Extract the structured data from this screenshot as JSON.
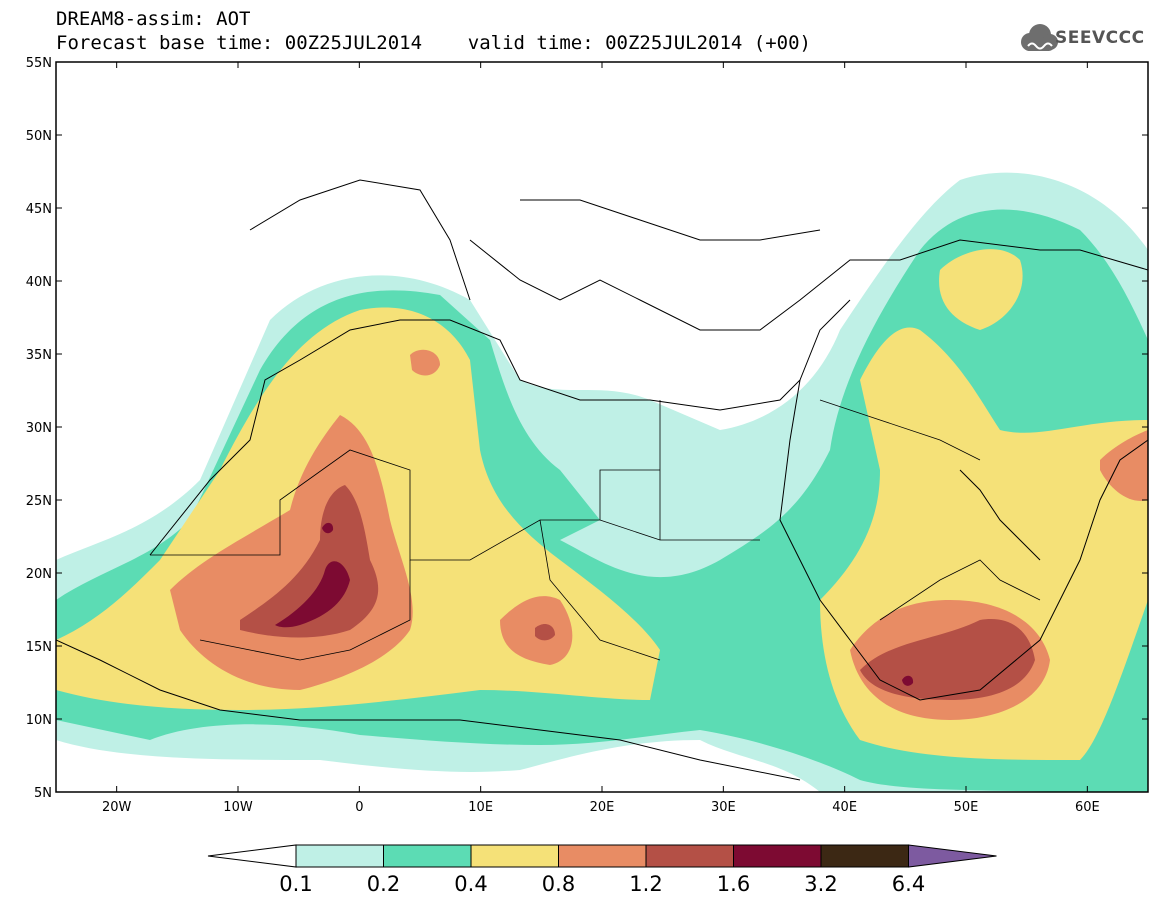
{
  "header": {
    "line1": "DREAM8-assim: AOT",
    "line2": "Forecast base time: 00Z25JUL2014    valid time: 00Z25JUL2014 (+00)",
    "logo_text": "SEEVCCC"
  },
  "map": {
    "lon_range": [
      -25,
      65
    ],
    "lat_range": [
      5,
      55
    ],
    "lat_ticks": [
      "5N",
      "10N",
      "15N",
      "20N",
      "25N",
      "30N",
      "35N",
      "40N",
      "45N",
      "50N",
      "55N"
    ],
    "lon_ticks": [
      "20W",
      "10W",
      "0",
      "10E",
      "20E",
      "30E",
      "40E",
      "50E",
      "60E"
    ]
  },
  "colorbar": {
    "labels": [
      "0.1",
      "0.2",
      "0.4",
      "0.8",
      "1.2",
      "1.6",
      "3.2",
      "6.4"
    ],
    "colors": [
      "#bff0e6",
      "#5cdcb4",
      "#f5e178",
      "#e88c64",
      "#b45046",
      "#7d0a32",
      "#3c2814",
      "#7d5aa0"
    ]
  }
}
